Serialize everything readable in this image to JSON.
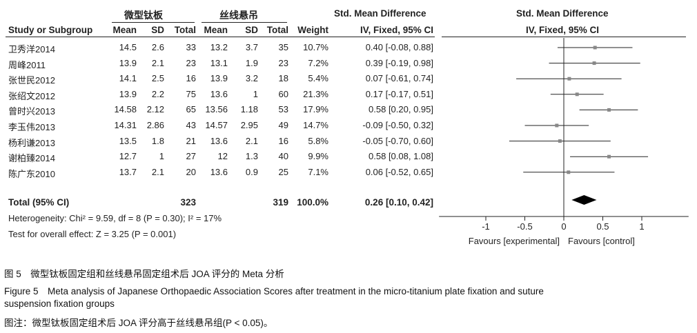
{
  "table": {
    "group1": "微型钛板",
    "group2": "丝线悬吊",
    "smd_header": "Std. Mean Difference",
    "smd_subheader": "IV, Fixed, 95% CI",
    "columns": [
      "Study or Subgroup",
      "Mean",
      "SD",
      "Total",
      "Mean",
      "SD",
      "Total",
      "Weight",
      "IV, Fixed, 95% CI"
    ],
    "rows": [
      {
        "study": "卫秀洋2014",
        "m1": "14.5",
        "sd1": "2.6",
        "n1": "33",
        "m2": "13.2",
        "sd2": "3.7",
        "n2": "35",
        "weight": "10.7%",
        "ci": "0.40 [-0.08, 0.88]"
      },
      {
        "study": "周峰2011",
        "m1": "13.9",
        "sd1": "2.1",
        "n1": "23",
        "m2": "13.1",
        "sd2": "1.9",
        "n2": "23",
        "weight": "7.2%",
        "ci": "0.39 [-0.19, 0.98]"
      },
      {
        "study": "张世民2012",
        "m1": "14.1",
        "sd1": "2.5",
        "n1": "16",
        "m2": "13.9",
        "sd2": "3.2",
        "n2": "18",
        "weight": "5.4%",
        "ci": "0.07 [-0.61, 0.74]"
      },
      {
        "study": "张绍文2012",
        "m1": "13.9",
        "sd1": "2.2",
        "n1": "75",
        "m2": "13.6",
        "sd2": "1",
        "n2": "60",
        "weight": "21.3%",
        "ci": "0.17 [-0.17, 0.51]"
      },
      {
        "study": "曾时兴2013",
        "m1": "14.58",
        "sd1": "2.12",
        "n1": "65",
        "m2": "13.56",
        "sd2": "1.18",
        "n2": "53",
        "weight": "17.9%",
        "ci": "0.58 [0.20, 0.95]"
      },
      {
        "study": "李玉伟2013",
        "m1": "14.31",
        "sd1": "2.86",
        "n1": "43",
        "m2": "14.57",
        "sd2": "2.95",
        "n2": "49",
        "weight": "14.7%",
        "ci": "-0.09 [-0.50, 0.32]"
      },
      {
        "study": "杨利谦2013",
        "m1": "13.5",
        "sd1": "1.8",
        "n1": "21",
        "m2": "13.6",
        "sd2": "2.1",
        "n2": "16",
        "weight": "5.8%",
        "ci": "-0.05 [-0.70, 0.60]"
      },
      {
        "study": "谢柏臻2014",
        "m1": "12.7",
        "sd1": "1",
        "n1": "27",
        "m2": "12",
        "sd2": "1.3",
        "n2": "40",
        "weight": "9.9%",
        "ci": "0.58 [0.08, 1.08]"
      },
      {
        "study": "陈广东2010",
        "m1": "13.7",
        "sd1": "2.1",
        "n1": "20",
        "m2": "13.6",
        "sd2": "0.9",
        "n2": "25",
        "weight": "7.1%",
        "ci": "0.06 [-0.52, 0.65]"
      }
    ],
    "total": {
      "label": "Total (95% CI)",
      "n1": "323",
      "n2": "319",
      "weight": "100.0%",
      "ci": "0.26 [0.10, 0.42]"
    },
    "heterogeneity": "Heterogeneity: Chi² = 9.59, df = 8 (P = 0.30); I² = 17%",
    "overall": "Test for overall effect: Z = 3.25 (P = 0.001)"
  },
  "chart_data": {
    "type": "scatter",
    "title": "Std. Mean Difference",
    "subtitle": "IV, Fixed, 95% CI",
    "xlim": [
      -1.6,
      1.6
    ],
    "xticks": [
      -1,
      -0.5,
      0,
      0.5,
      1
    ],
    "xtick_labels": [
      "-1",
      "-0.5",
      "0",
      "0.5",
      "1"
    ],
    "favours_left": "Favours [experimental]",
    "favours_right": "Favours [control]",
    "studies": [
      {
        "name": "卫秀洋2014",
        "est": 0.4,
        "lo": -0.08,
        "hi": 0.88
      },
      {
        "name": "周峰2011",
        "est": 0.39,
        "lo": -0.19,
        "hi": 0.98
      },
      {
        "name": "张世民2012",
        "est": 0.07,
        "lo": -0.61,
        "hi": 0.74
      },
      {
        "name": "张绍文2012",
        "est": 0.17,
        "lo": -0.17,
        "hi": 0.51
      },
      {
        "name": "曾时兴2013",
        "est": 0.58,
        "lo": 0.2,
        "hi": 0.95
      },
      {
        "name": "李玉伟2013",
        "est": -0.09,
        "lo": -0.5,
        "hi": 0.32
      },
      {
        "name": "杨利谦2013",
        "est": -0.05,
        "lo": -0.7,
        "hi": 0.6
      },
      {
        "name": "谢柏臻2014",
        "est": 0.58,
        "lo": 0.08,
        "hi": 1.08
      },
      {
        "name": "陈广东2010",
        "est": 0.06,
        "lo": -0.52,
        "hi": 0.65
      }
    ],
    "summary": {
      "est": 0.26,
      "lo": 0.1,
      "hi": 0.42
    }
  },
  "caption": {
    "cn": "图 5　微型钛板固定组和丝线悬吊固定组术后 JOA 评分的 Meta 分析",
    "en_line1": "Figure 5　Meta analysis of Japanese Orthopaedic Association Scores after treatment in the micro-titanium plate fixation and suture",
    "en_line2": "suspension fixation groups",
    "note": "图注：微型钛板固定组术后 JOA 评分高于丝线悬吊组(P < 0.05)。"
  },
  "colors": {
    "marker": "#888888",
    "diamond": "#000000",
    "line": "#222222"
  }
}
